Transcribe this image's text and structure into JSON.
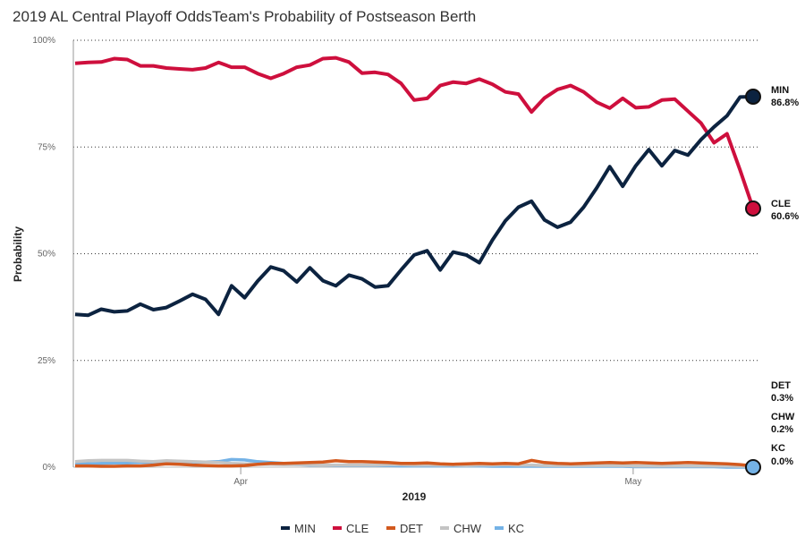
{
  "chart_data": {
    "type": "line",
    "title": "2019 AL Central Playoff OddsTeam's Probability of Postseason Berth",
    "xlabel": "2019",
    "ylabel": "Probability",
    "ylim": [
      0,
      100
    ],
    "xlim": [
      0,
      52
    ],
    "y_ticks": [
      {
        "value": 0,
        "label": "0%"
      },
      {
        "value": 25,
        "label": "25%"
      },
      {
        "value": 50,
        "label": "50%"
      },
      {
        "value": 75,
        "label": "75%"
      },
      {
        "value": 100,
        "label": "100%"
      }
    ],
    "x_ticks": [
      {
        "value": 12.7,
        "label": "Apr"
      },
      {
        "value": 42.8,
        "label": "May"
      }
    ],
    "grid": "horizontal dotted",
    "legend": "bottom-center",
    "series": [
      {
        "name": "MIN",
        "color": "#0C2340",
        "end_label": "86.8%",
        "values": [
          35.8,
          35.6,
          37.0,
          36.4,
          36.6,
          38.2,
          36.9,
          37.4,
          38.9,
          40.5,
          39.3,
          35.8,
          42.5,
          39.7,
          43.6,
          46.9,
          46.0,
          43.4,
          46.7,
          43.7,
          42.5,
          45.0,
          44.1,
          42.2,
          42.5,
          46.2,
          49.7,
          50.7,
          46.2,
          50.4,
          49.7,
          47.9,
          53.2,
          57.7,
          60.9,
          62.3,
          57.9,
          56.2,
          57.4,
          60.9,
          65.4,
          70.4,
          65.8,
          70.6,
          74.4,
          70.6,
          74.2,
          73.1,
          76.7,
          79.7,
          82.3,
          86.7,
          86.8
        ]
      },
      {
        "name": "CLE",
        "color": "#CE0F3D",
        "end_label": "60.6%",
        "values": [
          94.6,
          94.8,
          94.9,
          95.7,
          95.5,
          94.0,
          94.0,
          93.5,
          93.3,
          93.1,
          93.5,
          94.8,
          93.7,
          93.7,
          92.2,
          91.1,
          92.2,
          93.7,
          94.2,
          95.7,
          95.9,
          94.9,
          92.3,
          92.5,
          92.0,
          89.9,
          86.0,
          86.4,
          89.4,
          90.2,
          89.9,
          90.9,
          89.7,
          87.9,
          87.4,
          83.2,
          86.5,
          88.5,
          89.4,
          87.9,
          85.5,
          84.1,
          86.4,
          84.2,
          84.4,
          86.0,
          86.2,
          83.4,
          80.6,
          76.0,
          78.1,
          69.6,
          60.6
        ]
      },
      {
        "name": "DET",
        "color": "#D2591E",
        "end_label": "0.3%",
        "values": [
          0.3,
          0.3,
          0.2,
          0.2,
          0.3,
          0.3,
          0.5,
          0.8,
          0.7,
          0.5,
          0.4,
          0.3,
          0.3,
          0.4,
          0.7,
          0.9,
          0.9,
          1.0,
          1.1,
          1.2,
          1.5,
          1.3,
          1.3,
          1.2,
          1.1,
          0.9,
          0.9,
          1.0,
          0.8,
          0.7,
          0.8,
          0.9,
          0.8,
          0.9,
          0.8,
          1.6,
          1.1,
          0.9,
          0.8,
          0.9,
          1.0,
          1.1,
          1.0,
          1.1,
          1.0,
          0.9,
          1.0,
          1.1,
          1.0,
          0.9,
          0.8,
          0.6,
          0.3
        ]
      },
      {
        "name": "CHW",
        "color": "#C4C4C4",
        "end_label": "0.2%",
        "values": [
          1.3,
          1.5,
          1.6,
          1.6,
          1.6,
          1.4,
          1.3,
          1.5,
          1.4,
          1.3,
          1.2,
          1.1,
          0.9,
          0.8,
          0.7,
          0.7,
          0.6,
          0.6,
          0.6,
          0.5,
          0.5,
          0.5,
          0.5,
          0.5,
          0.6,
          0.6,
          0.5,
          0.5,
          0.5,
          0.5,
          0.4,
          0.5,
          0.5,
          0.6,
          0.5,
          0.5,
          0.4,
          0.4,
          0.4,
          0.4,
          0.4,
          0.4,
          0.4,
          0.3,
          0.3,
          0.3,
          0.3,
          0.3,
          0.3,
          0.3,
          0.3,
          0.2,
          0.2
        ]
      },
      {
        "name": "KC",
        "color": "#74B2E6",
        "end_label": "0.0%",
        "values": [
          0.8,
          0.8,
          0.9,
          1.0,
          1.0,
          1.1,
          1.2,
          1.3,
          1.3,
          1.2,
          1.2,
          1.3,
          1.8,
          1.7,
          1.3,
          1.1,
          0.9,
          0.6,
          0.5,
          0.5,
          0.4,
          0.4,
          0.4,
          0.4,
          0.4,
          0.3,
          0.3,
          0.3,
          0.3,
          0.3,
          0.3,
          0.3,
          0.2,
          0.2,
          0.2,
          0.2,
          0.2,
          0.2,
          0.2,
          0.2,
          0.2,
          0.2,
          0.2,
          0.1,
          0.1,
          0.1,
          0.1,
          0.1,
          0.1,
          0.1,
          0.0,
          0.0,
          0.0
        ]
      }
    ]
  }
}
